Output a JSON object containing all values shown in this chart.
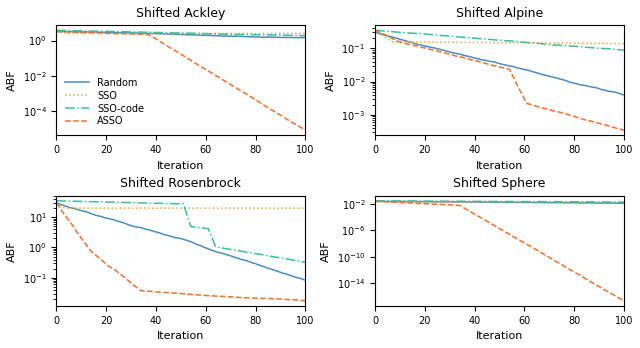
{
  "titles": [
    "Shifted Ackley",
    "Shifted Alpine",
    "Shifted Rosenbrock",
    "Shifted Sphere"
  ],
  "xlabel": "Iteration",
  "ylabel": "ABF",
  "c_random": "#4c8cbf",
  "c_sso": "#f0a830",
  "c_ssocode": "#3bbf9a",
  "c_asso": "#f07030",
  "figsize": [
    6.4,
    3.48
  ],
  "dpi": 100
}
